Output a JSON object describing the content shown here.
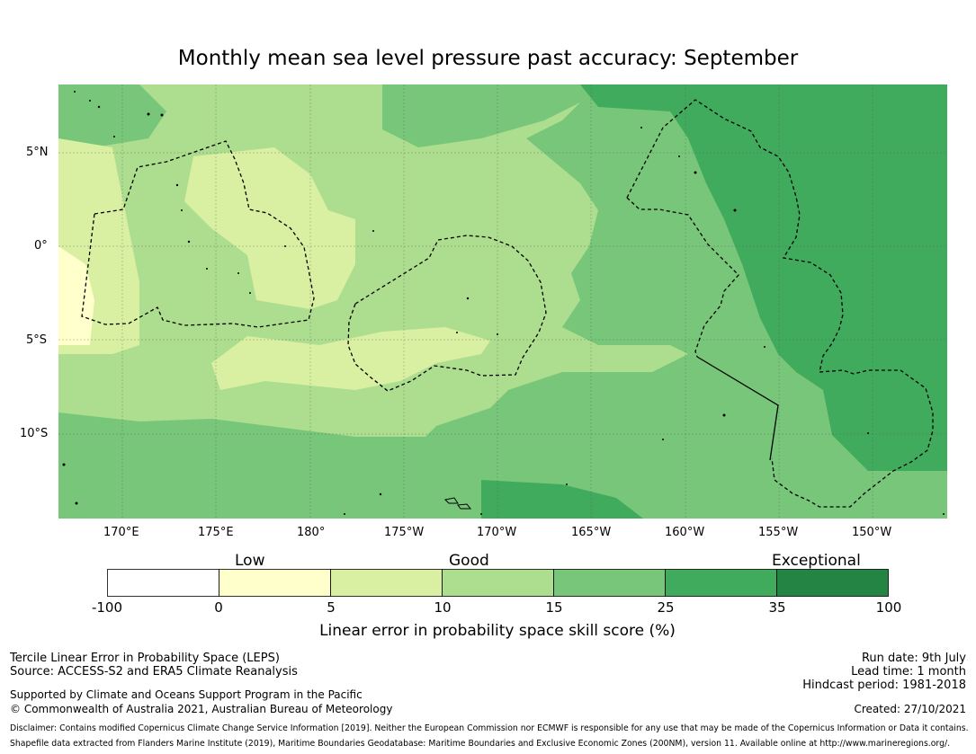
{
  "title": "Monthly mean sea level pressure past accuracy: September",
  "map": {
    "lon_labels": [
      "170°E",
      "175°E",
      "180°",
      "175°W",
      "170°W",
      "165°W",
      "160°W",
      "155°W",
      "150°W"
    ],
    "lat_labels": [
      "5°N",
      "0°",
      "5°S",
      "10°S"
    ],
    "colors": {
      "low": "#ffffcc",
      "lowmid": "#d9f0a3",
      "good": "#addd8e",
      "goodhigh": "#78c679",
      "high": "#41ab5d",
      "exceptional": "#238443"
    }
  },
  "colorbar": {
    "categories": [
      "Low",
      "Good",
      "Exceptional"
    ],
    "ticks": [
      "-100",
      "0",
      "5",
      "10",
      "15",
      "25",
      "35",
      "100"
    ],
    "segment_colors": [
      "#ffffff",
      "#ffffcc",
      "#d9f0a3",
      "#addd8e",
      "#78c679",
      "#41ab5d",
      "#238443"
    ],
    "label": "Linear error in probability space skill score (%)"
  },
  "footer": {
    "left1": "Tercile Linear Error in Probability Space (LEPS)",
    "left2": "Source: ACCESS-S2 and ERA5 Climate Reanalysis",
    "left3": "Supported by Climate and Oceans Support Program in the Pacific",
    "left4": "© Commonwealth of Australia 2021, Australian Bureau of Meteorology",
    "right1": "Run date: 9th July",
    "right2": "Lead time: 1 month",
    "right3": "Hindcast period: 1981-2018",
    "right4": "Created: 27/10/2021",
    "disclaimer1": "Disclaimer: Contains modified Copernicus Climate Change Service Information [2019]. Neither the European Commission nor ECMWF is responsible for any use that may be made of the Copernicus Information or Data it contains.",
    "disclaimer2": "Shapefile data extracted from Flanders Marine Institute (2019), Maritime Boundaries Geodatabase: Maritime Boundaries and Exclusive Economic Zones (200NM), version 11. Available online at http://www.marineregions.org/."
  }
}
